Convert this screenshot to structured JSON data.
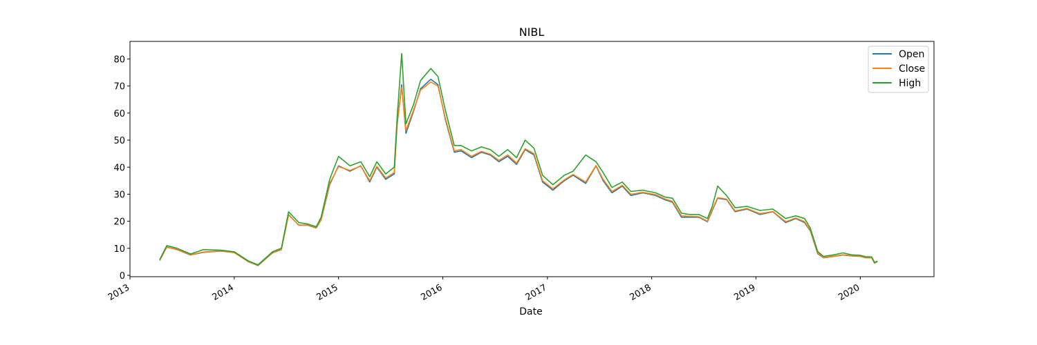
{
  "chart_data": {
    "type": "line",
    "title": "NIBL",
    "xlabel": "Date",
    "ylabel": "",
    "xlim": [
      "2013-01-01",
      "2020-09-15"
    ],
    "ylim": [
      -0.5,
      86.5
    ],
    "x_ticks": [
      "2013",
      "2014",
      "2015",
      "2016",
      "2017",
      "2018",
      "2019",
      "2020"
    ],
    "y_ticks": [
      0,
      10,
      20,
      30,
      40,
      50,
      60,
      70,
      80
    ],
    "grid": false,
    "legend_position": "top-right",
    "x": [
      "2013-04-15",
      "2013-05-10",
      "2013-06-15",
      "2013-08-01",
      "2013-09-15",
      "2013-11-15",
      "2014-01-01",
      "2014-02-20",
      "2014-03-25",
      "2014-05-15",
      "2014-06-15",
      "2014-07-10",
      "2014-08-15",
      "2014-09-15",
      "2014-10-15",
      "2014-11-01",
      "2014-12-01",
      "2015-01-01",
      "2015-02-10",
      "2015-03-20",
      "2015-04-20",
      "2015-05-15",
      "2015-06-15",
      "2015-07-15",
      "2015-07-25",
      "2015-08-10",
      "2015-08-25",
      "2015-09-20",
      "2015-10-15",
      "2015-11-20",
      "2015-12-15",
      "2016-01-10",
      "2016-02-10",
      "2016-03-05",
      "2016-04-10",
      "2016-05-15",
      "2016-06-15",
      "2016-07-15",
      "2016-08-15",
      "2016-09-15",
      "2016-10-15",
      "2016-11-15",
      "2016-12-15",
      "2017-01-20",
      "2017-03-01",
      "2017-04-01",
      "2017-05-15",
      "2017-06-20",
      "2017-07-15",
      "2017-08-15",
      "2017-09-20",
      "2017-10-20",
      "2017-12-01",
      "2018-01-15",
      "2018-02-15",
      "2018-03-15",
      "2018-04-15",
      "2018-05-15",
      "2018-06-15",
      "2018-07-15",
      "2018-08-01",
      "2018-08-20",
      "2018-09-20",
      "2018-10-20",
      "2018-12-01",
      "2019-01-15",
      "2019-03-01",
      "2019-04-15",
      "2019-05-20",
      "2019-06-20",
      "2019-07-10",
      "2019-08-05",
      "2019-08-25",
      "2019-10-01",
      "2019-11-01",
      "2019-12-01",
      "2020-01-01",
      "2020-01-20",
      "2020-02-10",
      "2020-02-20",
      "2020-03-01"
    ],
    "series": [
      {
        "name": "Open",
        "color": "#1f77b4",
        "values": [
          5.5,
          10.5,
          9.5,
          7.5,
          8.5,
          9,
          8.4,
          5,
          3.6,
          8.3,
          9.5,
          22.5,
          18.5,
          18.5,
          17.5,
          20.5,
          33.5,
          40.5,
          38.5,
          40.5,
          34.5,
          40,
          35.5,
          37.5,
          55.5,
          70.5,
          52.5,
          60.5,
          69,
          72.5,
          70.5,
          57.5,
          45.5,
          46,
          43.5,
          45.5,
          44.5,
          42,
          44,
          41,
          46.5,
          44.5,
          34.5,
          31.5,
          35,
          37,
          34,
          40.5,
          35,
          30.5,
          33,
          29.5,
          30.5,
          29.5,
          28,
          27,
          21.5,
          21.5,
          21.5,
          19.8,
          24,
          28.5,
          28,
          23.5,
          24.5,
          22.5,
          23.5,
          19.5,
          21,
          19.5,
          16.5,
          8,
          6.5,
          7,
          7.5,
          7.2,
          7,
          6.5,
          6.5,
          4.5,
          5
        ]
      },
      {
        "name": "Close",
        "color": "#ff7f0e",
        "values": [
          5.6,
          10.4,
          9.6,
          7.6,
          8.6,
          9.1,
          8.4,
          5.1,
          3.7,
          8.4,
          9.6,
          22.3,
          18.6,
          18.6,
          17.7,
          20.6,
          34,
          40.2,
          38.8,
          40.4,
          35,
          40.3,
          36,
          38,
          56,
          69.5,
          53.5,
          61,
          68.5,
          71.5,
          70,
          58,
          46,
          46.5,
          44,
          45.8,
          44.8,
          42.5,
          44.5,
          41.5,
          46.8,
          45,
          35,
          32,
          35.3,
          37.3,
          34.5,
          40.6,
          35.5,
          31,
          33.3,
          30,
          30.7,
          29.8,
          28.3,
          27.3,
          22,
          21.8,
          21.7,
          20,
          24.3,
          28.7,
          28.2,
          23.8,
          24.7,
          22.8,
          23.6,
          19.8,
          21.2,
          19.8,
          16.8,
          8.2,
          6.6,
          7.1,
          7.6,
          7.3,
          7.1,
          6.6,
          6.5,
          4.6,
          5.1
        ]
      },
      {
        "name": "High",
        "color": "#2ca02c",
        "values": [
          5.8,
          11,
          10,
          7.9,
          9.5,
          9.3,
          8.7,
          5.3,
          3.9,
          8.7,
          10,
          23.5,
          19.5,
          19,
          18,
          21.5,
          35.5,
          44,
          40.5,
          42,
          36.5,
          42,
          37.5,
          40,
          58,
          82,
          56,
          63,
          72,
          76.5,
          73.5,
          61,
          48,
          48,
          46,
          47.5,
          46.5,
          44,
          46.5,
          43.5,
          50,
          47,
          37,
          33.5,
          37,
          38.5,
          44.5,
          42,
          38,
          32.5,
          34.5,
          31,
          31.5,
          30.5,
          29,
          28.5,
          23,
          22.5,
          22.5,
          21,
          25.5,
          33,
          29.5,
          25,
          25.5,
          24,
          24.5,
          21,
          22,
          21,
          17.5,
          8.8,
          7,
          7.6,
          8.3,
          7.6,
          7.4,
          6.9,
          6.8,
          4.8,
          5.3
        ]
      }
    ]
  }
}
